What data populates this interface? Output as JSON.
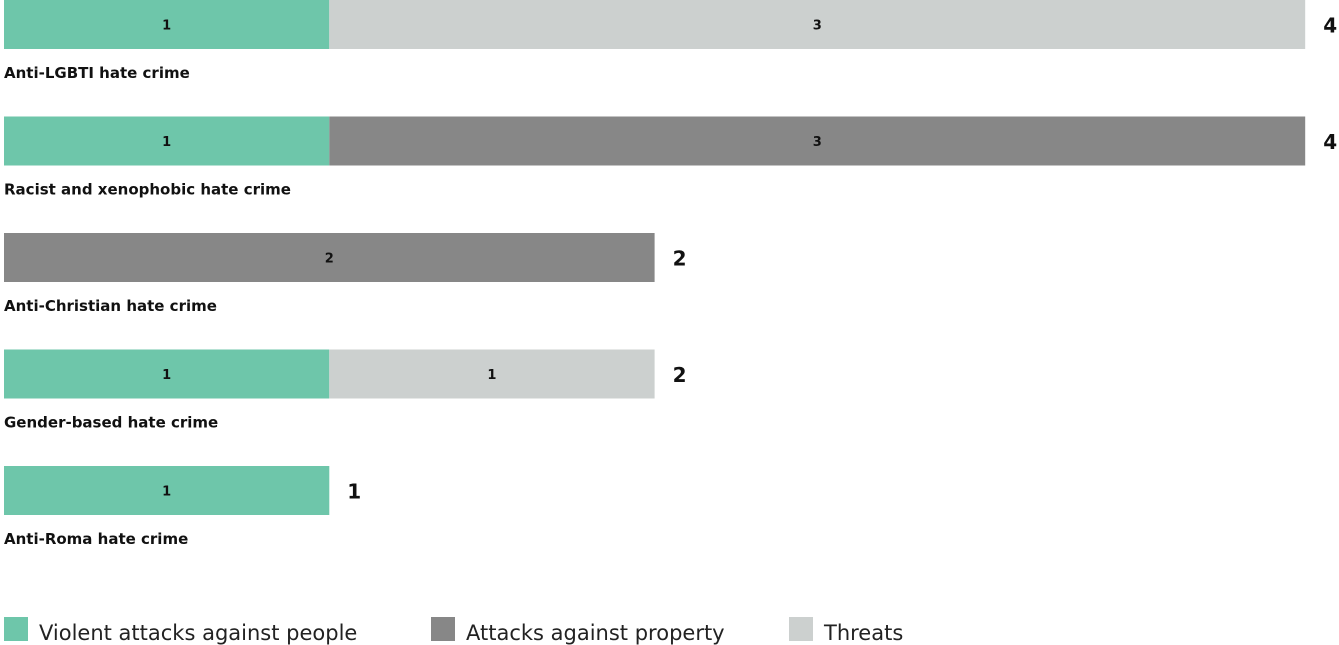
{
  "chart_data": {
    "type": "bar",
    "orientation": "horizontal",
    "stacked": true,
    "categories": [
      "Anti-LGBTI hate crime",
      "Racist and xenophobic hate crime",
      "Anti-Christian hate crime",
      "Gender-based hate crime",
      "Anti-Roma hate crime"
    ],
    "series": [
      {
        "name": "Violent attacks against people",
        "color": "#6ec6aa",
        "values": [
          1,
          1,
          0,
          1,
          1
        ]
      },
      {
        "name": "Attacks against property",
        "color": "#878787",
        "values": [
          0,
          3,
          2,
          0,
          0
        ]
      },
      {
        "name": "Threats",
        "color": "#ccd0cf",
        "values": [
          3,
          0,
          0,
          1,
          0
        ]
      }
    ],
    "totals": [
      4,
      4,
      2,
      2,
      1
    ],
    "xlim": [
      0,
      4
    ],
    "grid": false,
    "legend_position": "bottom-left"
  }
}
